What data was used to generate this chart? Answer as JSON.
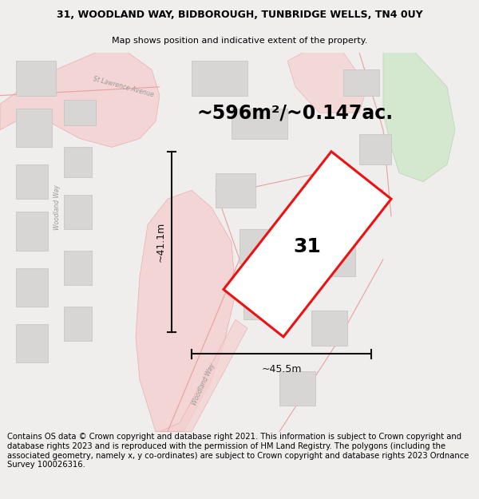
{
  "title_line1": "31, WOODLAND WAY, BIDBOROUGH, TUNBRIDGE WELLS, TN4 0UY",
  "title_line2": "Map shows position and indicative extent of the property.",
  "area_text": "~596m²/~0.147ac.",
  "label_31": "31",
  "dim_width": "~45.5m",
  "dim_height": "~41.1m",
  "footer_text": "Contains OS data © Crown copyright and database right 2021. This information is subject to Crown copyright and database rights 2023 and is reproduced with the permission of HM Land Registry. The polygons (including the associated geometry, namely x, y co-ordinates) are subject to Crown copyright and database rights 2023 Ordnance Survey 100026316.",
  "bg_color": "#f0eded",
  "map_bg": "#f7f4f4",
  "road_fill": "#f5d0d0",
  "road_line": "#e8a0a0",
  "building_fill": "#d8d5d5",
  "building_edge": "#c8c5c5",
  "green_fill": "#d4e8d0",
  "green_edge": "#b8d4b4",
  "plot_edge": "#ee1111",
  "plot_fill": "#ffffff",
  "dim_color": "#111111",
  "text_gray": "#999999",
  "title_fontsize": 9.0,
  "subtitle_fontsize": 8.0,
  "area_fontsize": 17,
  "label_fontsize": 18,
  "dim_fontsize": 9,
  "road_label_fontsize": 5.5,
  "footer_fontsize": 7.2
}
